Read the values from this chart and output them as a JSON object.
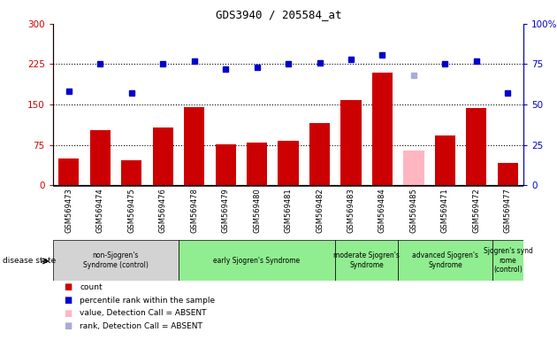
{
  "title": "GDS3940 / 205584_at",
  "samples": [
    "GSM569473",
    "GSM569474",
    "GSM569475",
    "GSM569476",
    "GSM569478",
    "GSM569479",
    "GSM569480",
    "GSM569481",
    "GSM569482",
    "GSM569483",
    "GSM569484",
    "GSM569485",
    "GSM569471",
    "GSM569472",
    "GSM569477"
  ],
  "bar_values": [
    50,
    103,
    47,
    107,
    145,
    76,
    79,
    82,
    115,
    158,
    210,
    65,
    93,
    143,
    42
  ],
  "bar_colors": [
    "#cc0000",
    "#cc0000",
    "#cc0000",
    "#cc0000",
    "#cc0000",
    "#cc0000",
    "#cc0000",
    "#cc0000",
    "#cc0000",
    "#cc0000",
    "#cc0000",
    "#ffb6c1",
    "#cc0000",
    "#cc0000",
    "#cc0000"
  ],
  "dot_values": [
    58,
    75,
    57,
    75,
    77,
    72,
    73,
    75,
    76,
    78,
    81,
    68,
    75,
    77,
    57
  ],
  "dot_colors": [
    "#0000cc",
    "#0000cc",
    "#0000cc",
    "#0000cc",
    "#0000cc",
    "#0000cc",
    "#0000cc",
    "#0000cc",
    "#0000cc",
    "#0000cc",
    "#0000cc",
    "#aaaadd",
    "#0000cc",
    "#0000cc",
    "#0000cc"
  ],
  "ylim_left": [
    0,
    300
  ],
  "ylim_right": [
    0,
    100
  ],
  "left_yticks": [
    0,
    75,
    150,
    225,
    300
  ],
  "right_yticks": [
    0,
    25,
    50,
    75,
    100
  ],
  "right_yticklabels": [
    "0",
    "25",
    "50",
    "75",
    "100%"
  ],
  "hlines": [
    75,
    150,
    225
  ],
  "groups": [
    {
      "label": "non-Sjogren's\nSyndrome (control)",
      "indices": [
        0,
        1,
        2,
        3
      ],
      "color": "#d3d3d3"
    },
    {
      "label": "early Sjogren's Syndrome",
      "indices": [
        4,
        5,
        6,
        7,
        8
      ],
      "color": "#90ee90"
    },
    {
      "label": "moderate Sjogren's\nSyndrome",
      "indices": [
        9,
        10
      ],
      "color": "#90ee90"
    },
    {
      "label": "advanced Sjogren's\nSyndrome",
      "indices": [
        11,
        12,
        13
      ],
      "color": "#90ee90"
    },
    {
      "label": "Sjogren's synd\nrome\n(control)",
      "indices": [
        14
      ],
      "color": "#90ee90"
    }
  ],
  "legend_colors": [
    "#cc0000",
    "#0000cc",
    "#ffb6c1",
    "#aaaadd"
  ],
  "legend_labels": [
    "count",
    "percentile rank within the sample",
    "value, Detection Call = ABSENT",
    "rank, Detection Call = ABSENT"
  ]
}
